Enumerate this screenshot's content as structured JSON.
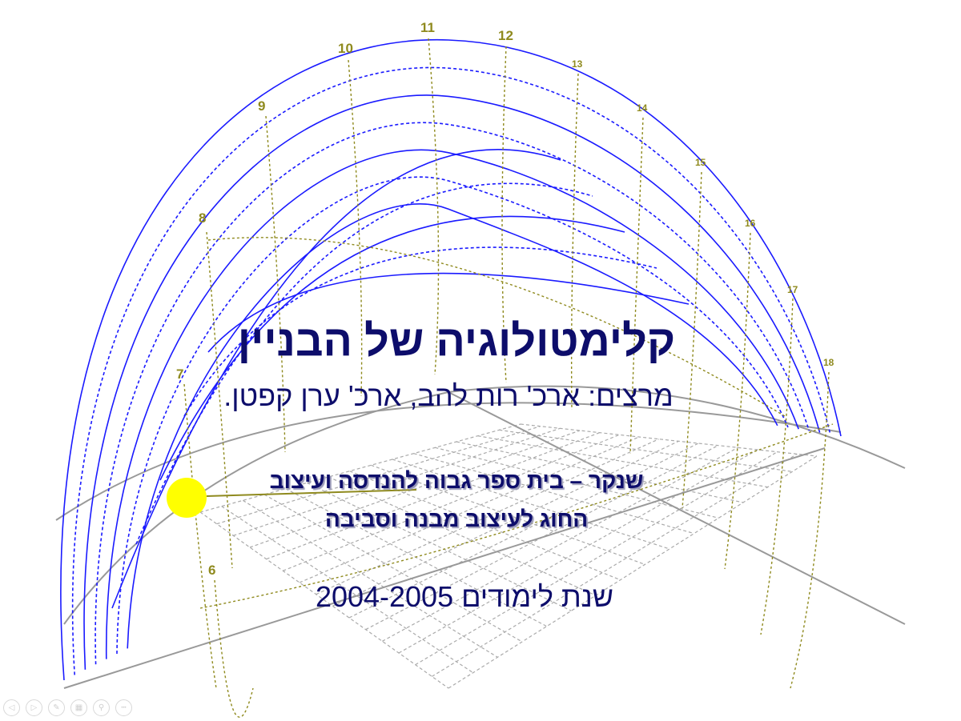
{
  "slide": {
    "title": "קלימטולוגיה של הבניין",
    "presenters": "מרצים: ארכ' רות להב, ארכ' ערן קפטן.",
    "school_line1": "שנקר – בית ספר גבוה להנדסה ועיצוב",
    "school_line2": "החוג לעיצוב מבנה וסביבה",
    "year": "שנת לימודים  2004-2005"
  },
  "diagram": {
    "hour_labels": [
      "6",
      "7",
      "8",
      "9",
      "10",
      "11",
      "12",
      "13",
      "14",
      "15",
      "16",
      "17",
      "18"
    ],
    "colors": {
      "sun_path": "#1a1aff",
      "hour_lines": "#8f8a1e",
      "ground": "#999999",
      "sun": "#ffff00",
      "text": "#0d0d6b"
    }
  },
  "controls": [
    {
      "name": "previous-slide",
      "glyph": "◁"
    },
    {
      "name": "next-slide",
      "glyph": "▷"
    },
    {
      "name": "pen",
      "glyph": "✎"
    },
    {
      "name": "see-all-slides",
      "glyph": "▦"
    },
    {
      "name": "zoom",
      "glyph": "⚲"
    },
    {
      "name": "more-options",
      "glyph": "•••"
    }
  ]
}
